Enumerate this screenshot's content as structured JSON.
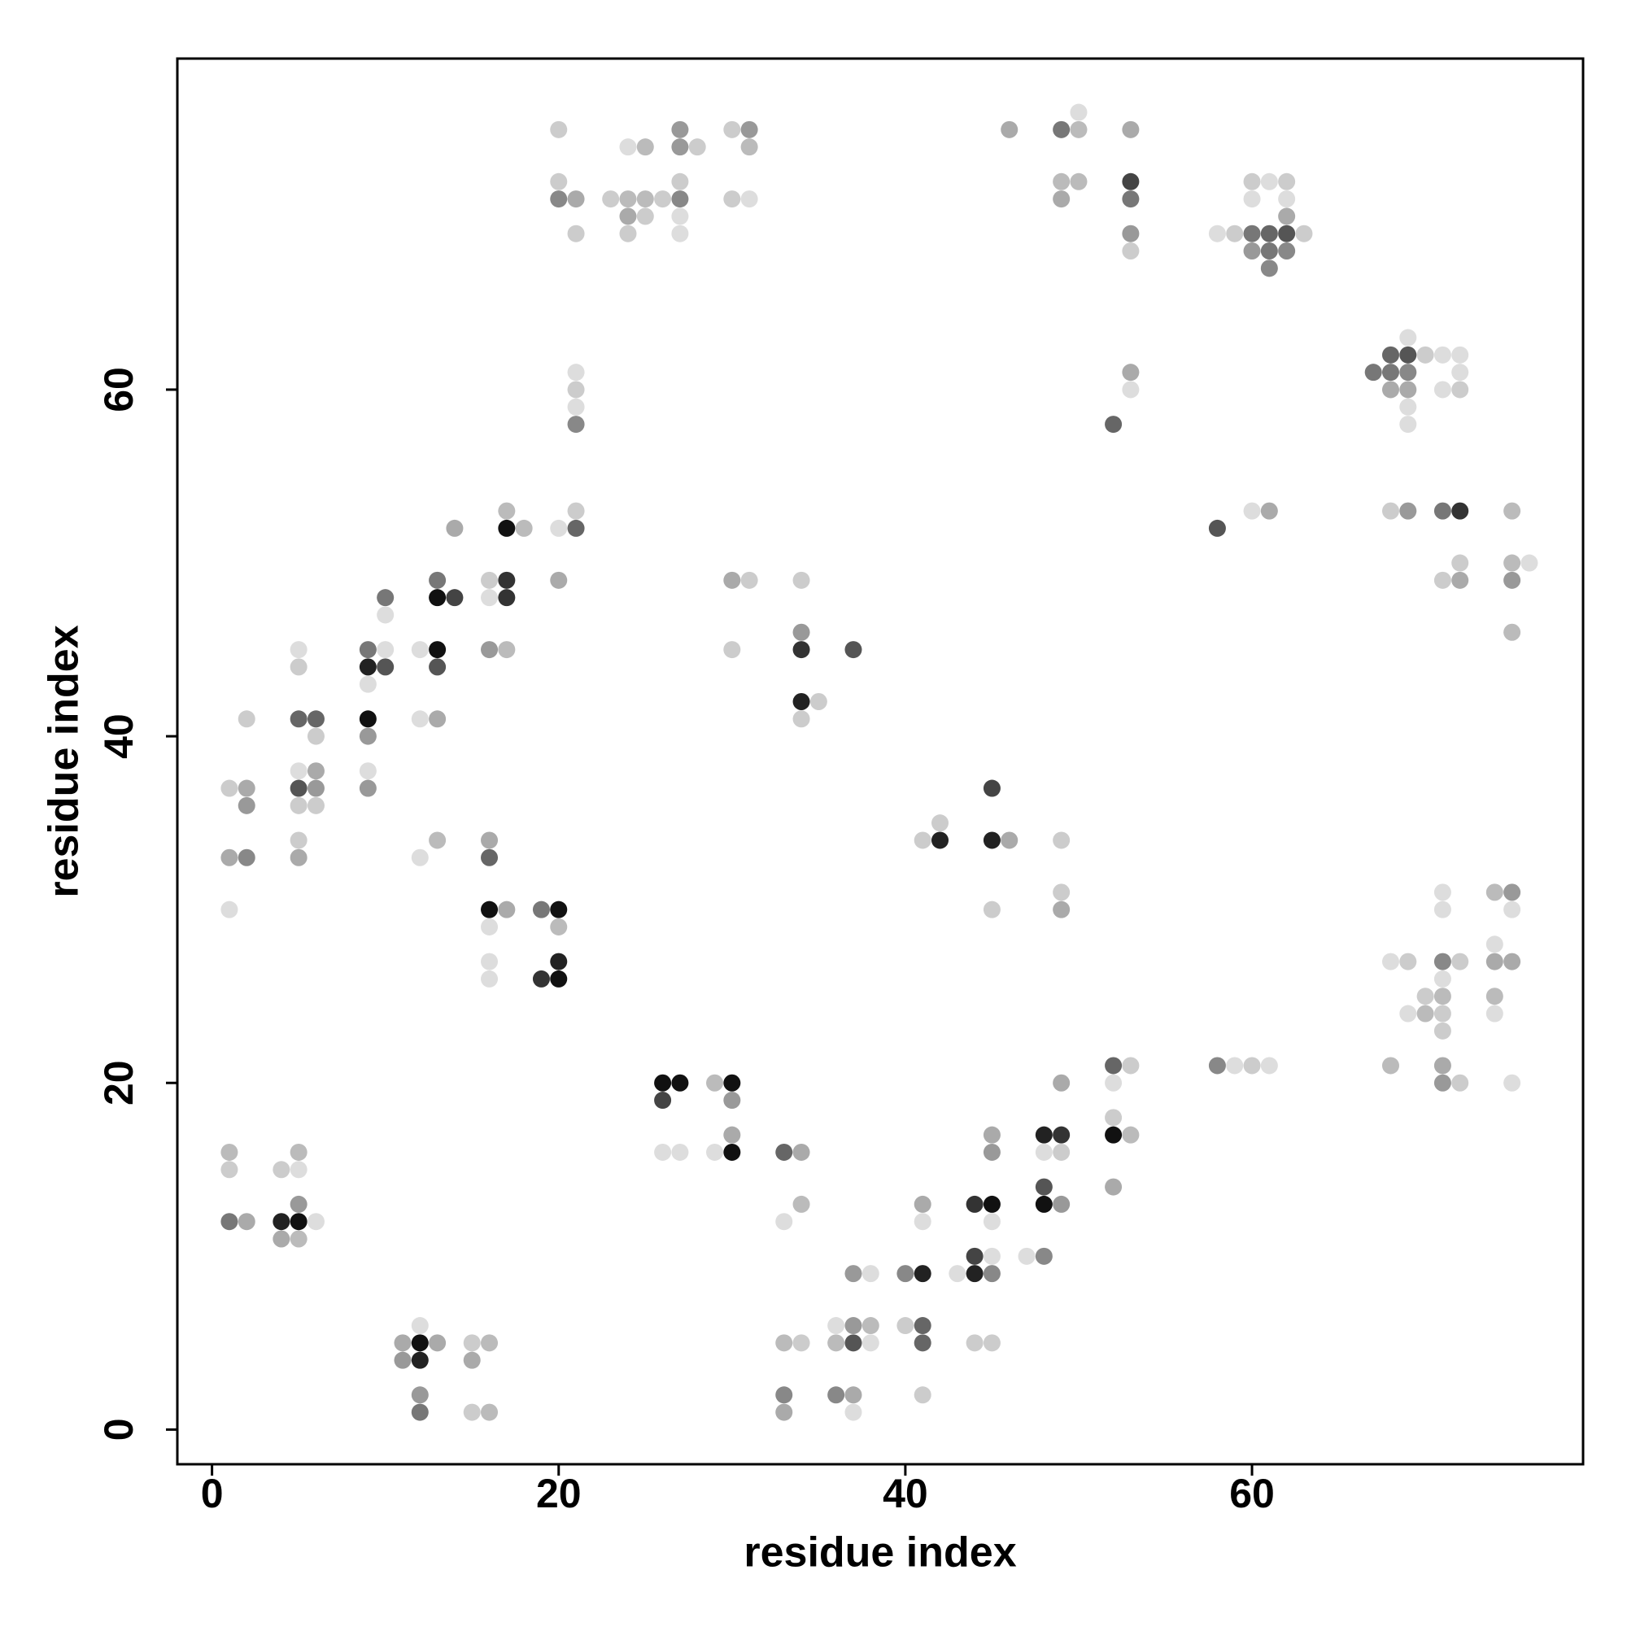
{
  "chart_data": {
    "type": "scatter",
    "xlabel": "residue index",
    "ylabel": "residue index",
    "xlim": [
      -2,
      79.1
    ],
    "ylim": [
      -2,
      79.1
    ],
    "xticks": [
      0,
      20,
      40,
      60
    ],
    "yticks": [
      0,
      20,
      40,
      60
    ],
    "x": [
      1,
      1,
      1,
      2,
      4,
      5,
      5,
      5,
      4,
      5,
      6,
      4,
      5,
      11,
      12,
      12,
      13,
      11,
      12,
      12,
      12,
      15,
      16,
      15,
      15,
      16,
      1,
      2,
      2,
      2,
      1,
      2,
      1,
      5,
      5,
      5,
      6,
      6,
      5,
      6,
      5,
      6,
      5,
      6,
      5,
      5,
      9,
      10,
      10,
      10,
      9,
      10,
      9,
      9,
      9,
      9,
      9,
      12,
      13,
      13,
      13,
      13,
      14,
      14,
      12,
      13,
      12,
      13,
      16,
      16,
      17,
      17,
      17,
      17,
      18,
      16,
      17,
      16,
      16,
      16,
      17,
      16,
      16,
      16,
      19,
      20,
      20,
      20,
      19,
      20,
      20,
      21,
      21,
      20,
      21,
      21,
      21,
      21,
      20,
      20,
      20,
      21,
      21,
      23,
      24,
      25,
      26,
      27,
      24,
      25,
      24,
      27,
      27,
      27,
      24,
      25,
      27,
      27,
      28,
      30,
      31,
      31,
      30,
      31,
      30,
      31,
      30,
      34,
      34,
      34,
      37,
      34,
      35,
      34,
      26,
      27,
      26,
      29,
      30,
      30,
      30,
      29,
      30,
      26,
      27,
      33,
      34,
      34,
      33,
      33,
      34,
      33,
      33,
      36,
      37,
      38,
      36,
      37,
      38,
      36,
      37,
      37,
      37,
      38,
      40,
      41,
      40,
      41,
      41,
      41,
      41,
      41,
      43,
      44,
      45,
      44,
      45,
      44,
      45,
      45,
      45,
      45,
      44,
      45,
      47,
      48,
      48,
      48,
      49,
      48,
      49,
      48,
      49,
      49,
      52,
      53,
      52,
      52,
      52,
      53,
      52,
      41,
      42,
      42,
      45,
      45,
      46,
      45,
      49,
      49,
      49,
      46,
      49,
      50,
      50,
      49,
      50,
      49,
      53,
      53,
      53,
      53,
      53,
      52,
      53,
      53,
      58,
      59,
      60,
      61,
      62,
      63,
      60,
      61,
      62,
      60,
      62,
      62,
      60,
      61,
      62,
      61,
      67,
      68,
      69,
      70,
      71,
      72,
      68,
      69,
      72,
      69,
      68,
      69,
      71,
      72,
      69,
      69,
      58,
      60,
      61,
      68,
      69,
      71,
      72,
      72,
      71,
      72,
      75,
      75,
      76,
      75,
      75,
      58,
      59,
      60,
      61,
      68,
      69,
      70,
      71,
      69,
      70,
      71,
      71,
      71,
      72,
      71,
      71,
      71,
      68,
      71,
      71,
      72,
      74,
      75,
      75,
      74,
      74,
      75,
      74,
      74,
      75
    ],
    "y": [
      16,
      15,
      12,
      12,
      15,
      15,
      16,
      13,
      12,
      12,
      12,
      11,
      11,
      5,
      6,
      5,
      5,
      4,
      4,
      2,
      1,
      5,
      5,
      4,
      1,
      1,
      37,
      37,
      36,
      41,
      33,
      33,
      30,
      45,
      44,
      41,
      41,
      40,
      38,
      38,
      37,
      37,
      36,
      36,
      34,
      33,
      45,
      45,
      48,
      47,
      44,
      44,
      43,
      41,
      40,
      38,
      37,
      45,
      45,
      44,
      49,
      48,
      48,
      52,
      41,
      41,
      33,
      34,
      49,
      48,
      49,
      48,
      53,
      52,
      52,
      45,
      45,
      34,
      33,
      30,
      30,
      29,
      27,
      26,
      30,
      30,
      29,
      27,
      26,
      26,
      52,
      52,
      53,
      49,
      61,
      60,
      59,
      58,
      75,
      72,
      71,
      71,
      69,
      71,
      71,
      71,
      71,
      71,
      70,
      70,
      69,
      72,
      70,
      69,
      74,
      74,
      75,
      74,
      74,
      75,
      75,
      74,
      71,
      71,
      49,
      49,
      45,
      49,
      46,
      45,
      45,
      42,
      42,
      41,
      20,
      20,
      19,
      20,
      20,
      19,
      17,
      16,
      16,
      16,
      16,
      16,
      16,
      13,
      12,
      5,
      5,
      2,
      1,
      6,
      6,
      6,
      5,
      5,
      5,
      2,
      2,
      1,
      9,
      9,
      9,
      9,
      6,
      6,
      5,
      2,
      13,
      12,
      9,
      9,
      9,
      10,
      10,
      13,
      13,
      12,
      17,
      16,
      5,
      5,
      10,
      10,
      14,
      13,
      13,
      17,
      17,
      16,
      16,
      20,
      21,
      21,
      20,
      18,
      17,
      17,
      14,
      34,
      35,
      34,
      37,
      34,
      34,
      30,
      34,
      31,
      30,
      75,
      75,
      75,
      76,
      72,
      72,
      71,
      75,
      72,
      71,
      69,
      68,
      58,
      61,
      60,
      69,
      69,
      69,
      69,
      69,
      69,
      72,
      72,
      72,
      71,
      71,
      70,
      68,
      68,
      68,
      67,
      61,
      62,
      62,
      62,
      62,
      62,
      61,
      61,
      61,
      63,
      60,
      60,
      60,
      60,
      59,
      58,
      52,
      53,
      53,
      53,
      53,
      53,
      53,
      50,
      49,
      49,
      53,
      50,
      50,
      49,
      46,
      21,
      21,
      21,
      21,
      27,
      27,
      25,
      25,
      24,
      24,
      24,
      23,
      27,
      27,
      26,
      31,
      30,
      21,
      21,
      20,
      20,
      31,
      31,
      30,
      28,
      27,
      27,
      25,
      24,
      20
    ],
    "colors": [
      "#bbb",
      "#ccc",
      "#777",
      "#aaa",
      "#ccc",
      "#ddd",
      "#bbb",
      "#999",
      "#222",
      "#111",
      "#ddd",
      "#aaa",
      "#bbb",
      "#aaa",
      "#ddd",
      "#111",
      "#aaa",
      "#999",
      "#222",
      "#999",
      "#777",
      "#ccc",
      "#bbb",
      "#aaa",
      "#ccc",
      "#bbb",
      "#ccc",
      "#aaa",
      "#999",
      "#ccc",
      "#aaa",
      "#888",
      "#ddd",
      "#ddd",
      "#ccc",
      "#666",
      "#666",
      "#ccc",
      "#ddd",
      "#aaa",
      "#555",
      "#999",
      "#ccc",
      "#ccc",
      "#ccc",
      "#aaa",
      "#777",
      "#ddd",
      "#777",
      "#ddd",
      "#222",
      "#555",
      "#ddd",
      "#111",
      "#999",
      "#ddd",
      "#999",
      "#ddd",
      "#111",
      "#555",
      "#777",
      "#111",
      "#444",
      "#aaa",
      "#ddd",
      "#aaa",
      "#ddd",
      "#bbb",
      "#ccc",
      "#ddd",
      "#333",
      "#333",
      "#bbb",
      "#111",
      "#bbb",
      "#999",
      "#bbb",
      "#aaa",
      "#666",
      "#111",
      "#aaa",
      "#ddd",
      "#ddd",
      "#ddd",
      "#777",
      "#111",
      "#bbb",
      "#222",
      "#333",
      "#111",
      "#ddd",
      "#666",
      "#ccc",
      "#aaa",
      "#ddd",
      "#ccc",
      "#ddd",
      "#888",
      "#ccc",
      "#ccc",
      "#888",
      "#aaa",
      "#ccc",
      "#ccc",
      "#bbb",
      "#bbb",
      "#ccc",
      "#888",
      "#aaa",
      "#ccc",
      "#ccc",
      "#ccc",
      "#ddd",
      "#ddd",
      "#ddd",
      "#bbb",
      "#999",
      "#999",
      "#ccc",
      "#ccc",
      "#999",
      "#bbb",
      "#ccc",
      "#ddd",
      "#aaa",
      "#ccc",
      "#ccc",
      "#ccc",
      "#999",
      "#333",
      "#555",
      "#222",
      "#ccc",
      "#ccc",
      "#111",
      "#111",
      "#444",
      "#bbb",
      "#111",
      "#999",
      "#aaa",
      "#ddd",
      "#111",
      "#ddd",
      "#ddd",
      "#666",
      "#aaa",
      "#bbb",
      "#ddd",
      "#bbb",
      "#ccc",
      "#888",
      "#aaa",
      "#ddd",
      "#999",
      "#bbb",
      "#bbb",
      "#555",
      "#ddd",
      "#888",
      "#aaa",
      "#ddd",
      "#999",
      "#ddd",
      "#888",
      "#222",
      "#ccc",
      "#666",
      "#666",
      "#ccc",
      "#aaa",
      "#ddd",
      "#ddd",
      "#222",
      "#888",
      "#444",
      "#ddd",
      "#333",
      "#111",
      "#ddd",
      "#aaa",
      "#999",
      "#ccc",
      "#ccc",
      "#ddd",
      "#888",
      "#555",
      "#111",
      "#999",
      "#222",
      "#333",
      "#ddd",
      "#ccc",
      "#aaa",
      "#666",
      "#ccc",
      "#ddd",
      "#ccc",
      "#111",
      "#bbb",
      "#aaa",
      "#ccc",
      "#ccc",
      "#222",
      "#444",
      "#222",
      "#aaa",
      "#ccc",
      "#ccc",
      "#ccc",
      "#aaa",
      "#aaa",
      "#777",
      "#bbb",
      "#ddd",
      "#bbb",
      "#bbb",
      "#aaa",
      "#aaa",
      "#444",
      "#777",
      "#999",
      "#ccc",
      "#666",
      "#aaa",
      "#ddd",
      "#ddd",
      "#ccc",
      "#777",
      "#666",
      "#555",
      "#ccc",
      "#ccc",
      "#ddd",
      "#ccc",
      "#ddd",
      "#ddd",
      "#aaa",
      "#999",
      "#777",
      "#888",
      "#888",
      "#777",
      "#666",
      "#555",
      "#ccc",
      "#ddd",
      "#ddd",
      "#777",
      "#888",
      "#ddd",
      "#ddd",
      "#aaa",
      "#aaa",
      "#ddd",
      "#ccc",
      "#ddd",
      "#ddd",
      "#555",
      "#ddd",
      "#aaa",
      "#ccc",
      "#999",
      "#777",
      "#333",
      "#ccc",
      "#ccc",
      "#aaa",
      "#bbb",
      "#bbb",
      "#ddd",
      "#999",
      "#bbb",
      "#888",
      "#ddd",
      "#ccc",
      "#ddd",
      "#ddd",
      "#ccc",
      "#ccc",
      "#bbb",
      "#ddd",
      "#bbb",
      "#ccc",
      "#ccc",
      "#888",
      "#ccc",
      "#ddd",
      "#ddd",
      "#ddd",
      "#bbb",
      "#aaa",
      "#999",
      "#ccc",
      "#bbb",
      "#999",
      "#ddd",
      "#ddd",
      "#aaa",
      "#aaa",
      "#bbb",
      "#ddd",
      "#ddd"
    ]
  }
}
